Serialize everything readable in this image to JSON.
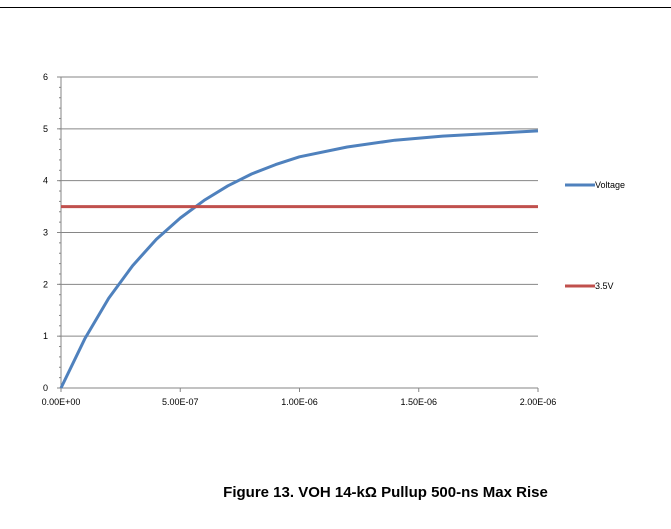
{
  "caption": "Figure 13. VOH 14-kΩ Pullup 500-ns Max Rise",
  "colors": {
    "voltage": "#4f81bd",
    "threshold": "#c0504d",
    "grid": "#868686",
    "axis": "#868686"
  },
  "chart_data": {
    "type": "line",
    "xlim": [
      0,
      2e-06
    ],
    "ylim": [
      0,
      6
    ],
    "x_ticks": [
      "0.00E+00",
      "5.00E-07",
      "1.00E-06",
      "1.50E-06",
      "2.00E-06"
    ],
    "y_ticks": [
      "0",
      "1",
      "2",
      "3",
      "4",
      "5",
      "6"
    ],
    "grid": "horizontal",
    "legend_position": "right",
    "series": [
      {
        "name": "Voltage",
        "x": [
          0,
          1e-07,
          2e-07,
          3e-07,
          4e-07,
          5e-07,
          6e-07,
          7e-07,
          8e-07,
          9e-07,
          1e-06,
          1.2e-06,
          1.4e-06,
          1.6e-06,
          1.8e-06,
          2e-06
        ],
        "y": [
          0,
          0.95,
          1.73,
          2.36,
          2.87,
          3.28,
          3.62,
          3.9,
          4.13,
          4.31,
          4.46,
          4.65,
          4.78,
          4.86,
          4.91,
          4.96
        ]
      },
      {
        "name": "3.5V",
        "x": [
          0,
          2e-06
        ],
        "y": [
          3.5,
          3.5
        ]
      }
    ]
  }
}
